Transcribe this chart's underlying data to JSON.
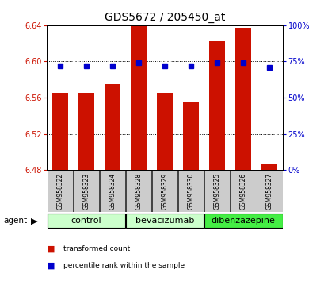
{
  "title": "GDS5672 / 205450_at",
  "samples": [
    "GSM958322",
    "GSM958323",
    "GSM958324",
    "GSM958328",
    "GSM958329",
    "GSM958330",
    "GSM958325",
    "GSM958326",
    "GSM958327"
  ],
  "bar_values": [
    6.565,
    6.565,
    6.575,
    6.641,
    6.565,
    6.555,
    6.622,
    6.637,
    6.487
  ],
  "percentile_values": [
    72,
    72,
    72,
    74,
    72,
    72,
    74,
    74,
    71
  ],
  "base": 6.48,
  "ylim_left": [
    6.48,
    6.64
  ],
  "ylim_right": [
    0,
    100
  ],
  "yticks_left": [
    6.48,
    6.52,
    6.56,
    6.6,
    6.64
  ],
  "yticks_right": [
    0,
    25,
    50,
    75,
    100
  ],
  "grid_vals": [
    6.6,
    6.56,
    6.52
  ],
  "bar_color": "#cc1100",
  "dot_color": "#0000cc",
  "bar_width": 0.6,
  "title_fontsize": 10,
  "tick_fontsize": 7,
  "label_fontsize": 7.5,
  "group_label_fontsize": 8,
  "sample_fontsize": 5.5,
  "legend_items": [
    {
      "label": "transformed count",
      "color": "#cc1100"
    },
    {
      "label": "percentile rank within the sample",
      "color": "#0000cc"
    }
  ],
  "left_tick_color": "#cc1100",
  "right_tick_color": "#0000cc",
  "sample_box_color": "#cccccc",
  "control_color": "#ccffcc",
  "dibenz_color": "#44ee44",
  "background_color": "#ffffff",
  "group_bounds": [
    [
      0,
      2,
      "control",
      "#ccffcc"
    ],
    [
      3,
      5,
      "bevacizumab",
      "#ccffcc"
    ],
    [
      6,
      8,
      "dibenzazepine",
      "#44ee44"
    ]
  ]
}
